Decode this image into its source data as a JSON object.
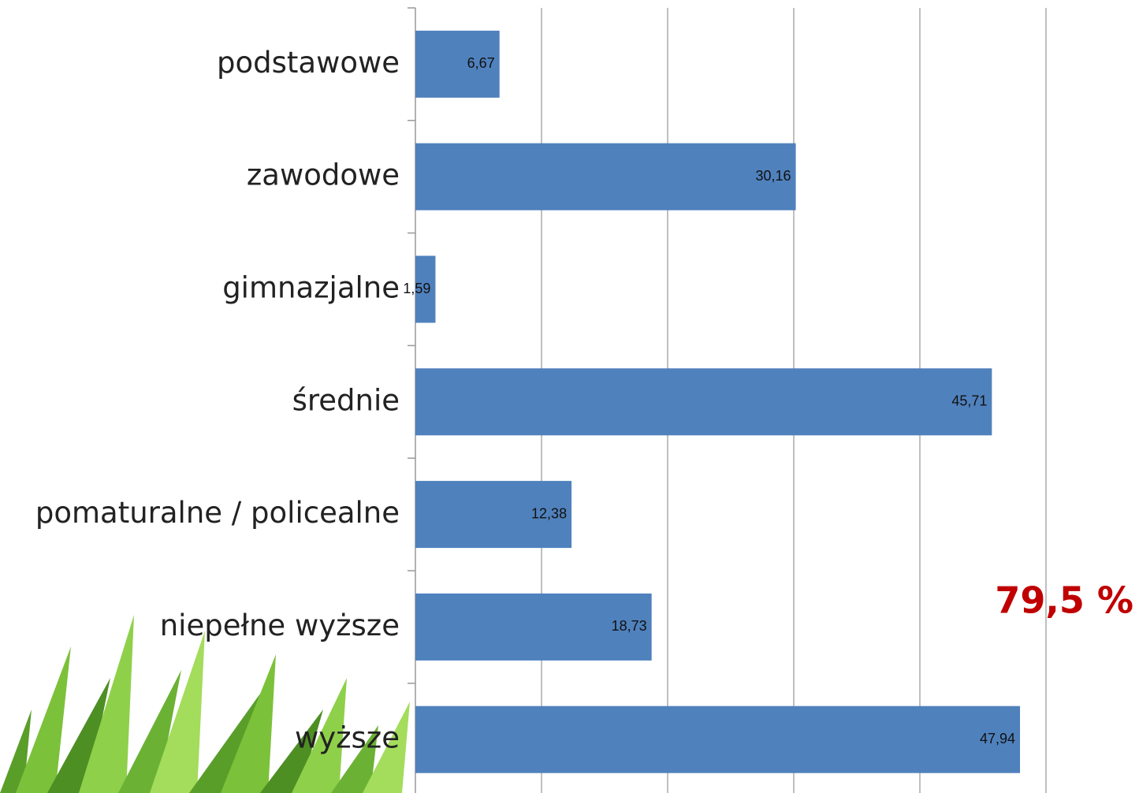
{
  "chart_data": {
    "type": "bar",
    "orientation": "horizontal",
    "categories": [
      "podstawowe",
      "zawodowe",
      "gimnazjalne",
      "średnie",
      "pomaturalne / policealne",
      "niepełne wyższe",
      "wyższe"
    ],
    "values": [
      6.67,
      30.16,
      1.59,
      45.71,
      12.38,
      18.73,
      47.94
    ],
    "value_labels": [
      "6,67",
      "30,16",
      "1,59",
      "45,71",
      "12,38",
      "18,73",
      "47,94"
    ],
    "color": "#4f81bd",
    "xlim": [
      0,
      50
    ],
    "xticks": [
      0,
      10,
      20,
      30,
      40,
      50
    ],
    "grid": true,
    "annotation": "79,5 %"
  }
}
